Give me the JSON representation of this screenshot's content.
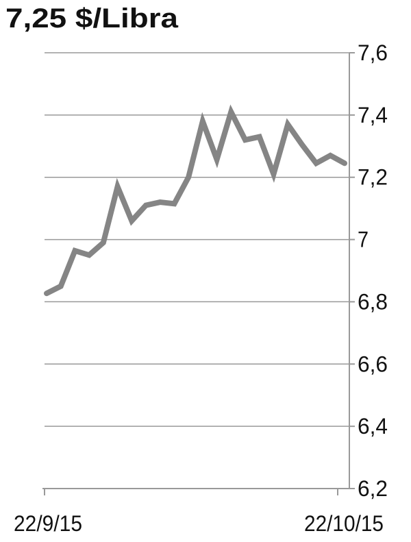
{
  "chart_data": {
    "type": "line",
    "title": "7,25 $/Libra",
    "categories": [
      "22/9/15",
      null,
      null,
      null,
      null,
      null,
      null,
      null,
      null,
      null,
      null,
      null,
      null,
      null,
      null,
      null,
      null,
      null,
      null,
      null,
      null,
      "22/10/15"
    ],
    "series": [
      {
        "color": "#858585",
        "values": [
          6.827,
          6.85,
          6.964,
          6.95,
          6.99,
          7.17,
          7.06,
          7.11,
          7.12,
          7.115,
          7.2,
          7.38,
          7.257,
          7.41,
          7.32,
          7.33,
          7.21,
          7.37,
          7.305,
          7.245,
          7.27,
          7.245
        ]
      }
    ],
    "ylim": [
      6.2,
      7.6
    ],
    "yticks": [
      {
        "value": 6.2,
        "label": "6,2"
      },
      {
        "value": 6.4,
        "label": "6,4"
      },
      {
        "value": 6.6,
        "label": "6,6"
      },
      {
        "value": 6.8,
        "label": "6,8"
      },
      7,
      {
        "value": 7.2,
        "label": "7,2"
      },
      {
        "value": 7.4,
        "label": "7,4"
      },
      {
        "value": 7.6,
        "label": "7,6"
      }
    ],
    "grid": true
  }
}
